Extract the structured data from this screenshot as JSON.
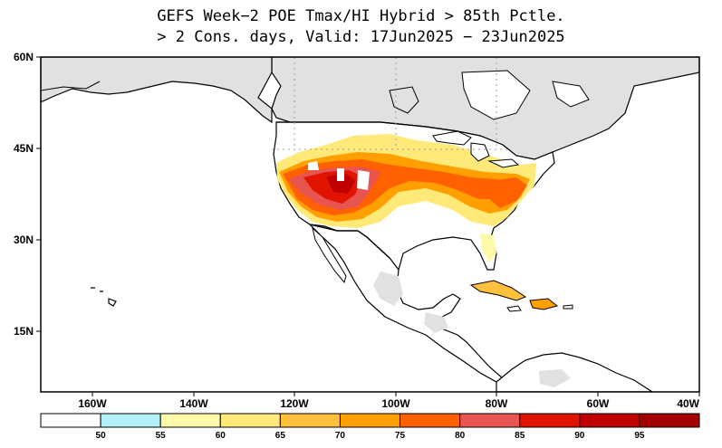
{
  "title": {
    "line1": "GEFS Week−2 POE Tmax/HI Hybrid > 85th Pctle.",
    "line2": "> 2 Cons. days, Valid: 17Jun2025 − 23Jun2025"
  },
  "axes": {
    "lat_labels": [
      "60N",
      "45N",
      "30N",
      "15N"
    ],
    "lon_labels": [
      "160W",
      "140W",
      "120W",
      "100W",
      "80W",
      "60W",
      "40W"
    ]
  },
  "colorbar": {
    "colors": [
      "#ffffff",
      "#b4f0fa",
      "#fffaaa",
      "#ffe978",
      "#ffc03c",
      "#ffa000",
      "#ff6000",
      "#e85450",
      "#e11400",
      "#c00000",
      "#a50000"
    ],
    "labels": [
      "50",
      "55",
      "60",
      "65",
      "70",
      "75",
      "80",
      "85",
      "90",
      "95"
    ]
  },
  "map_colors": {
    "land": "#ffffff",
    "masked_land": "#e1e1e1",
    "ocean": "#ffffff",
    "coastline": "#000000",
    "grid": "#a0a0a0"
  }
}
